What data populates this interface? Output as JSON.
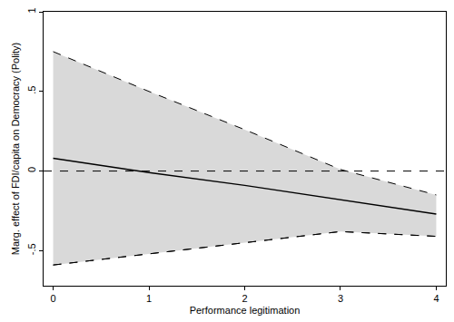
{
  "chart_data": {
    "type": "line",
    "x_label": "Performance legitimation",
    "y_label": "Marg. effect of FDI/capita on Democracy (Polity)",
    "x": [
      0,
      1,
      2,
      3,
      4
    ],
    "values": [
      0.08,
      -0.01,
      -0.09,
      -0.18,
      -0.27
    ],
    "ci_upper": [
      0.75,
      0.5,
      0.26,
      0.01,
      -0.15
    ],
    "ci_lower": [
      -0.59,
      -0.52,
      -0.45,
      -0.38,
      -0.41
    ],
    "hline": 0,
    "color": "#000000",
    "xlim": [
      -0.1,
      4.1
    ],
    "xticks": [
      0,
      1,
      2,
      3,
      4
    ],
    "ylim": [
      -0.72,
      1
    ],
    "yticks": [
      {
        "value": -0.5,
        "label": "-.5"
      },
      0,
      {
        "value": 0.5,
        "label": ".5"
      },
      1
    ],
    "grid": false
  }
}
